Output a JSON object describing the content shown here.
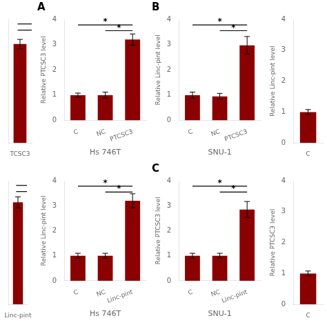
{
  "chart_data": [
    {
      "type": "bar",
      "categories": [
        "TCSC3"
      ],
      "values": [
        3.2
      ],
      "errors": [
        0.15
      ],
      "color": "#8B0000",
      "ylim": [
        0,
        4
      ],
      "sig_lines": [
        {
          "y": 3.85
        },
        {
          "y": 3.65
        }
      ],
      "tick_labels": "x",
      "grid": false
    },
    {
      "type": "bar",
      "title": "A",
      "categories": [
        "C",
        "NC",
        "PTCSC3"
      ],
      "values": [
        1.0,
        1.0,
        3.2
      ],
      "errors": [
        0.08,
        0.12,
        0.22
      ],
      "color": "#8B0000",
      "xlabel": "Hs 746T",
      "ylabel": "Relative PTCSC3 level",
      "ylim": [
        0,
        4
      ],
      "yticks": [
        0,
        1,
        2,
        3,
        4
      ],
      "sig_lines": [
        {
          "from": "C",
          "to": "PTCSC3",
          "y": 3.78,
          "label": "*"
        },
        {
          "from": "NC",
          "to": "PTCSC3",
          "y": 3.55,
          "label": "*"
        }
      ],
      "grid": false
    },
    {
      "type": "bar",
      "title": "B",
      "categories": [
        "C",
        "NC",
        "PTCSC3"
      ],
      "values": [
        1.0,
        0.95,
        2.97
      ],
      "errors": [
        0.12,
        0.12,
        0.35
      ],
      "color": "#8B0000",
      "xlabel": "SNU-1",
      "ylabel": "Relative Linc-pint level",
      "ylim": [
        0,
        4
      ],
      "yticks": [
        0,
        1,
        2,
        3,
        4
      ],
      "sig_lines": [
        {
          "from": "C",
          "to": "PTCSC3",
          "y": 3.78,
          "label": "*"
        },
        {
          "from": "NC",
          "to": "PTCSC3",
          "y": 3.55,
          "label": "*"
        }
      ],
      "grid": false
    },
    {
      "type": "bar",
      "categories": [
        "C"
      ],
      "values": [
        1.0
      ],
      "errors": [
        0.08
      ],
      "color": "#8B0000",
      "ylabel": "Relative Linc-pint level",
      "ylim": [
        0,
        4
      ],
      "yticks": [
        0,
        1,
        2,
        3,
        4
      ],
      "grid": false
    },
    {
      "type": "bar",
      "categories": [
        "Linc-pint"
      ],
      "values": [
        3.3
      ],
      "errors": [
        0.18
      ],
      "color": "#8B0000",
      "ylim": [
        0,
        4
      ],
      "sig_lines": [
        {
          "y": 3.85
        },
        {
          "y": 3.65
        }
      ],
      "tick_labels": "x",
      "grid": false
    },
    {
      "type": "bar",
      "categories": [
        "C",
        "NC",
        "Linc-pint"
      ],
      "values": [
        1.0,
        1.0,
        3.2
      ],
      "errors": [
        0.1,
        0.1,
        0.28
      ],
      "color": "#8B0000",
      "xlabel": "Hs 746T",
      "ylabel": "Relative Linc-pint level",
      "ylim": [
        0,
        4
      ],
      "yticks": [
        0,
        1,
        2,
        3,
        4
      ],
      "sig_lines": [
        {
          "from": "C",
          "to": "Linc-pint",
          "y": 3.78,
          "label": "*"
        },
        {
          "from": "NC",
          "to": "Linc-pint",
          "y": 3.55,
          "label": "*"
        }
      ],
      "grid": false
    },
    {
      "type": "bar",
      "title": "C",
      "categories": [
        "C",
        "NC",
        "Linc-pint"
      ],
      "values": [
        1.0,
        1.0,
        2.85
      ],
      "errors": [
        0.1,
        0.1,
        0.32
      ],
      "color": "#8B0000",
      "xlabel": "SNU-1",
      "ylabel": "Relative PTCSC3 level",
      "ylim": [
        0,
        4
      ],
      "yticks": [
        0,
        1,
        2,
        3,
        4
      ],
      "sig_lines": [
        {
          "from": "C",
          "to": "Linc-pint",
          "y": 3.78,
          "label": "*"
        },
        {
          "from": "NC",
          "to": "Linc-pint",
          "y": 3.55,
          "label": "*"
        }
      ],
      "grid": false
    },
    {
      "type": "bar",
      "categories": [
        "C"
      ],
      "values": [
        1.0
      ],
      "errors": [
        0.08
      ],
      "color": "#8B0000",
      "ylabel": "Relative PTCSC3 level",
      "ylim": [
        0,
        4
      ],
      "yticks": [
        0,
        1,
        2,
        3,
        4
      ],
      "grid": false
    }
  ]
}
